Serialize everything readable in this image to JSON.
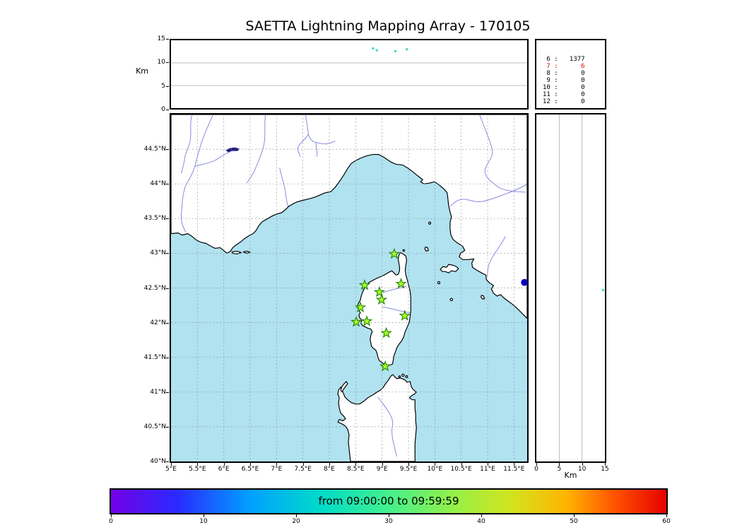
{
  "labels": {
    "km": "Km"
  },
  "chart_data": {
    "type": "scatter",
    "title": "SAETTA Lightning Mapping Array - 170105",
    "panels": [
      {
        "id": "alt_vs_lon",
        "ylabel": "Km",
        "ylim": [
          0,
          15
        ],
        "yticks": [
          0,
          5,
          10,
          15
        ],
        "grid_y": [
          5,
          10
        ],
        "point_color": "#3fd6c8",
        "points": [
          [
            8.83,
            13.2
          ],
          [
            8.9,
            12.8
          ],
          [
            9.25,
            12.6
          ],
          [
            9.47,
            13.0
          ]
        ]
      },
      {
        "id": "station_count_table",
        "rows": [
          [
            6,
            1377
          ],
          [
            7,
            6
          ],
          [
            8,
            0
          ],
          [
            9,
            0
          ],
          [
            10,
            0
          ],
          [
            11,
            0
          ],
          [
            12,
            0
          ]
        ],
        "highlight_row": 1,
        "highlight_color": "#e00000"
      },
      {
        "id": "map",
        "lon_range": [
          5,
          11.75
        ],
        "lat_range": [
          40,
          45
        ],
        "lon_ticks": [
          5,
          5.5,
          6,
          6.5,
          7,
          7.5,
          8,
          8.5,
          9,
          9.5,
          10,
          10.5,
          11,
          11.5
        ],
        "lon_tick_labels": [
          "5°E",
          "5.5°E",
          "6°E",
          "6.5°E",
          "7°E",
          "7.5°E",
          "8°E",
          "8.5°E",
          "9°E",
          "9.5°E",
          "10°E",
          "10.5°E",
          "11°E",
          "11.5°E"
        ],
        "lat_ticks": [
          40,
          40.5,
          41,
          41.5,
          42,
          42.5,
          43,
          43.5,
          44,
          44.5
        ],
        "lat_tick_labels": [
          "40°N",
          "40.5°N",
          "41°N",
          "41.5°N",
          "42°N",
          "42.5°N",
          "43°N",
          "43.5°N",
          "44°N",
          "44.5°N"
        ],
        "sea_color": "#b0e2f0",
        "station_fill": "#adff2f",
        "station_edge": "#1e8400",
        "stations_lonlat": [
          [
            9.23,
            42.99
          ],
          [
            8.67,
            42.54
          ],
          [
            8.95,
            42.44
          ],
          [
            9.36,
            42.56
          ],
          [
            8.59,
            42.22
          ],
          [
            8.99,
            42.33
          ],
          [
            8.51,
            42.01
          ],
          [
            8.71,
            42.02
          ],
          [
            9.43,
            42.1
          ],
          [
            9.08,
            41.85
          ],
          [
            9.06,
            41.37
          ]
        ],
        "points": [
          {
            "lon": 11.7,
            "lat": 42.58,
            "r": 5,
            "color": "#0000c8"
          }
        ]
      },
      {
        "id": "alt_vs_lat",
        "xlabel": "Km",
        "xlim": [
          0,
          15
        ],
        "xticks": [
          0,
          5,
          10,
          15
        ],
        "grid_x": [
          5,
          10
        ],
        "point_color": "#3fd6c8",
        "points": [
          [
            42.47,
            14.6
          ]
        ]
      },
      {
        "id": "colorbar",
        "label": "from 09:00:00 to 09:59:59",
        "ticks": [
          0,
          10,
          20,
          30,
          40,
          50,
          60
        ],
        "gradient": [
          {
            "p": 0,
            "c": "#7300e6"
          },
          {
            "p": 12,
            "c": "#2a2aff"
          },
          {
            "p": 25,
            "c": "#00a0ff"
          },
          {
            "p": 38,
            "c": "#00dcc8"
          },
          {
            "p": 50,
            "c": "#44f08c"
          },
          {
            "p": 62,
            "c": "#96f046"
          },
          {
            "p": 72,
            "c": "#d2e41e"
          },
          {
            "p": 82,
            "c": "#ffb400"
          },
          {
            "p": 91,
            "c": "#ff5000"
          },
          {
            "p": 100,
            "c": "#e60000"
          }
        ]
      }
    ]
  }
}
